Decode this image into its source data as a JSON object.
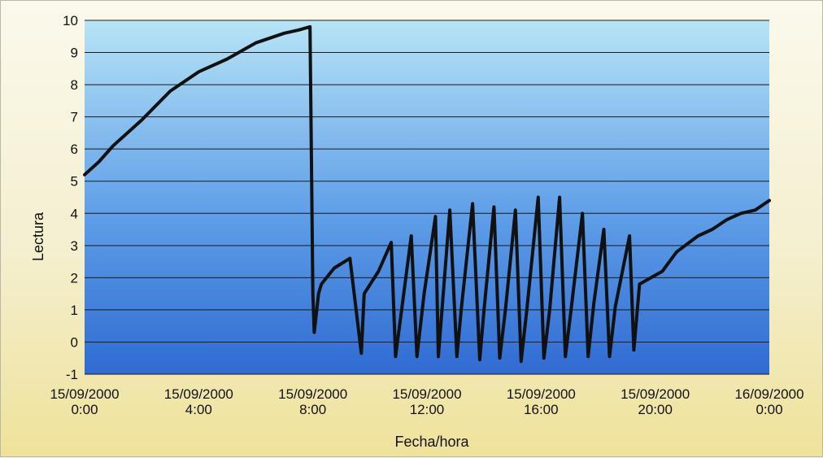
{
  "chart_data": {
    "type": "line",
    "title": "",
    "xlabel": "Fecha/hora",
    "ylabel": "Lectura",
    "ylim": [
      -1,
      10
    ],
    "yticks": [
      -1,
      0,
      1,
      2,
      3,
      4,
      5,
      6,
      7,
      8,
      9,
      10
    ],
    "xlim": [
      "15/09/2000 0:00",
      "16/09/2000 0:00"
    ],
    "xticks": [
      {
        "date": "15/09/2000",
        "time": "0:00",
        "hours": 0
      },
      {
        "date": "15/09/2000",
        "time": "4:00",
        "hours": 4
      },
      {
        "date": "15/09/2000",
        "time": "8:00",
        "hours": 8
      },
      {
        "date": "15/09/2000",
        "time": "12:00",
        "hours": 12
      },
      {
        "date": "15/09/2000",
        "time": "16:00",
        "hours": 16
      },
      {
        "date": "15/09/2000",
        "time": "20:00",
        "hours": 20
      },
      {
        "date": "16/09/2000",
        "time": "0:00",
        "hours": 24
      }
    ],
    "grid": "horizontal",
    "colors": {
      "line": "#111111",
      "plot_top": "#b7e4f5",
      "plot_bottom": "#2f6bd2",
      "grid": "#1a1a1a"
    },
    "series": [
      {
        "x_hours": [
          0,
          0.5,
          1,
          2,
          3,
          4,
          5,
          6,
          7,
          7.5,
          7.9,
          8.0,
          8.05,
          8.2,
          8.3,
          8.75,
          9.3,
          9.7,
          9.8,
          10.3,
          10.75,
          10.9,
          11.45,
          11.65,
          11.9,
          12.3,
          12.4,
          12.8,
          13.05,
          13.2,
          13.6,
          13.85,
          14.0,
          14.35,
          14.55,
          14.75,
          15.1,
          15.3,
          15.5,
          15.9,
          16.1,
          16.3,
          16.65,
          16.85,
          17.05,
          17.45,
          17.65,
          17.85,
          18.2,
          18.4,
          18.6,
          19.1,
          19.25,
          19.45,
          20.25,
          20.5,
          20.75,
          21.5,
          22,
          22.5,
          23,
          23.5,
          24
        ],
        "y": [
          5.2,
          5.6,
          6.1,
          6.9,
          7.8,
          8.4,
          8.8,
          9.3,
          9.6,
          9.7,
          9.8,
          1.5,
          0.3,
          1.5,
          1.8,
          2.3,
          2.6,
          -0.35,
          1.5,
          2.2,
          3.1,
          -0.45,
          3.3,
          -0.45,
          1.5,
          3.9,
          -0.45,
          4.1,
          -0.45,
          1.0,
          4.3,
          -0.55,
          1.0,
          4.2,
          -0.5,
          1.0,
          4.1,
          -0.6,
          1.0,
          4.5,
          -0.5,
          1.0,
          4.5,
          -0.45,
          1.0,
          4.0,
          -0.45,
          1.2,
          3.5,
          -0.45,
          1.1,
          3.3,
          -0.25,
          1.8,
          2.2,
          2.5,
          2.8,
          3.3,
          3.5,
          3.8,
          4.0,
          4.1,
          4.4
        ]
      }
    ]
  }
}
